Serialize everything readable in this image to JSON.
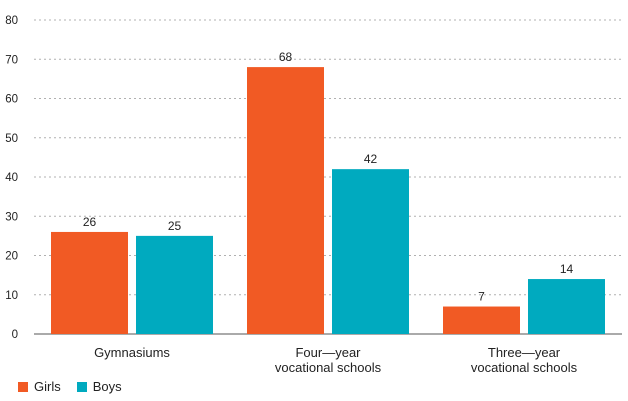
{
  "chart_data": {
    "type": "bar",
    "title": "",
    "xlabel": "",
    "ylabel": "",
    "ylim": [
      0,
      80
    ],
    "yticks": [
      0,
      10,
      20,
      30,
      40,
      50,
      60,
      70,
      80
    ],
    "grid": "horizontal dashed",
    "legend_position": "bottom-left",
    "categories": [
      [
        "Gymnasiums"
      ],
      [
        "Four—year",
        "vocational schools"
      ],
      [
        "Three—year",
        "vocational schools"
      ]
    ],
    "series": [
      {
        "name": "Girls",
        "color": "#f15a24",
        "values": [
          26,
          68,
          7
        ]
      },
      {
        "name": "Boys",
        "color": "#00aabf",
        "values": [
          25,
          42,
          14
        ]
      }
    ]
  },
  "legend": {
    "girls_label": "Girls",
    "boys_label": "Boys",
    "girls_color": "#f15a24",
    "boys_color": "#00aabf"
  }
}
